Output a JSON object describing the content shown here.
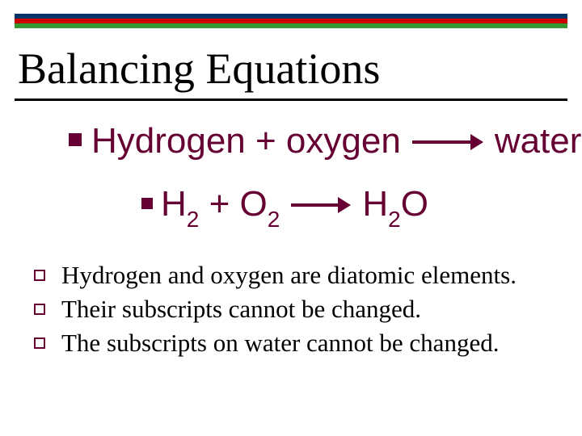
{
  "stripes": {
    "color1": "#003366",
    "color2": "#cc0000",
    "color3": "#339933"
  },
  "title": "Balancing Equations",
  "equation_words": {
    "left": "Hydrogen + oxygen",
    "right": "water"
  },
  "equation_symbols": {
    "h": "H",
    "h_sub": "2",
    "plus": " +  ",
    "o": "O",
    "o_sub": "2",
    "prod_h": "H",
    "prod_h_sub": "2",
    "prod_o": "O"
  },
  "arrow": {
    "shaft_width_long": 72,
    "shaft_width_short": 58,
    "color": "#660033"
  },
  "notes": [
    "Hydrogen and oxygen are diatomic elements.",
    "Their subscripts cannot be changed.",
    "The subscripts on water cannot be changed."
  ],
  "colors": {
    "heading_text": "#660033",
    "bullet": "#660033"
  }
}
